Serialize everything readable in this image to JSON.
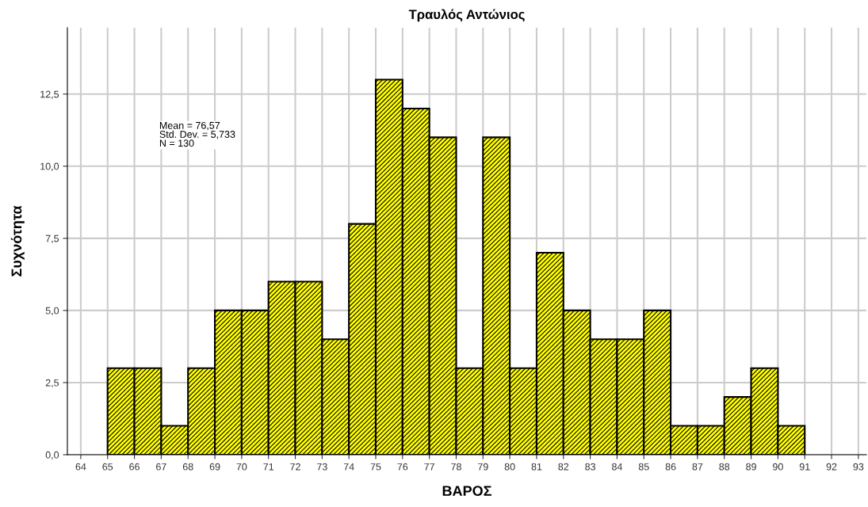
{
  "chart_data": {
    "type": "histogram",
    "title": "Τραυλός Αντώνιος",
    "xlabel": "ΒΑΡΟΣ",
    "ylabel": "Συχνότητα",
    "bins": [
      65,
      66,
      67,
      68,
      69,
      70,
      71,
      72,
      73,
      74,
      75,
      76,
      77,
      78,
      79,
      80,
      81,
      82,
      83,
      84,
      85,
      86,
      87,
      88,
      89,
      90,
      91
    ],
    "values": [
      3,
      3,
      1,
      3,
      5,
      5,
      6,
      6,
      4,
      8,
      13,
      12,
      11,
      3,
      11,
      3,
      7,
      5,
      4,
      4,
      5,
      1,
      1,
      2,
      3,
      1
    ],
    "color": "#ffff00",
    "xlim": [
      63.5,
      93.3
    ],
    "xticks": [
      64,
      65,
      66,
      67,
      68,
      69,
      70,
      71,
      72,
      73,
      74,
      75,
      76,
      77,
      78,
      79,
      80,
      81,
      82,
      83,
      84,
      85,
      86,
      87,
      88,
      89,
      90,
      91,
      92,
      93
    ],
    "ylim": [
      0,
      14.8
    ],
    "yticks": [
      {
        "value": 0,
        "label": "0,0"
      },
      {
        "value": 2.5,
        "label": "2,5"
      },
      {
        "value": 5,
        "label": "5,0"
      },
      {
        "value": 7.5,
        "label": "7,5"
      },
      {
        "value": 10,
        "label": "10,0"
      },
      {
        "value": 12.5,
        "label": "12,5"
      }
    ],
    "grid": true,
    "annotations": [
      "Mean = 76,57\nStd. Dev. = 5,733\nN = 130"
    ]
  }
}
